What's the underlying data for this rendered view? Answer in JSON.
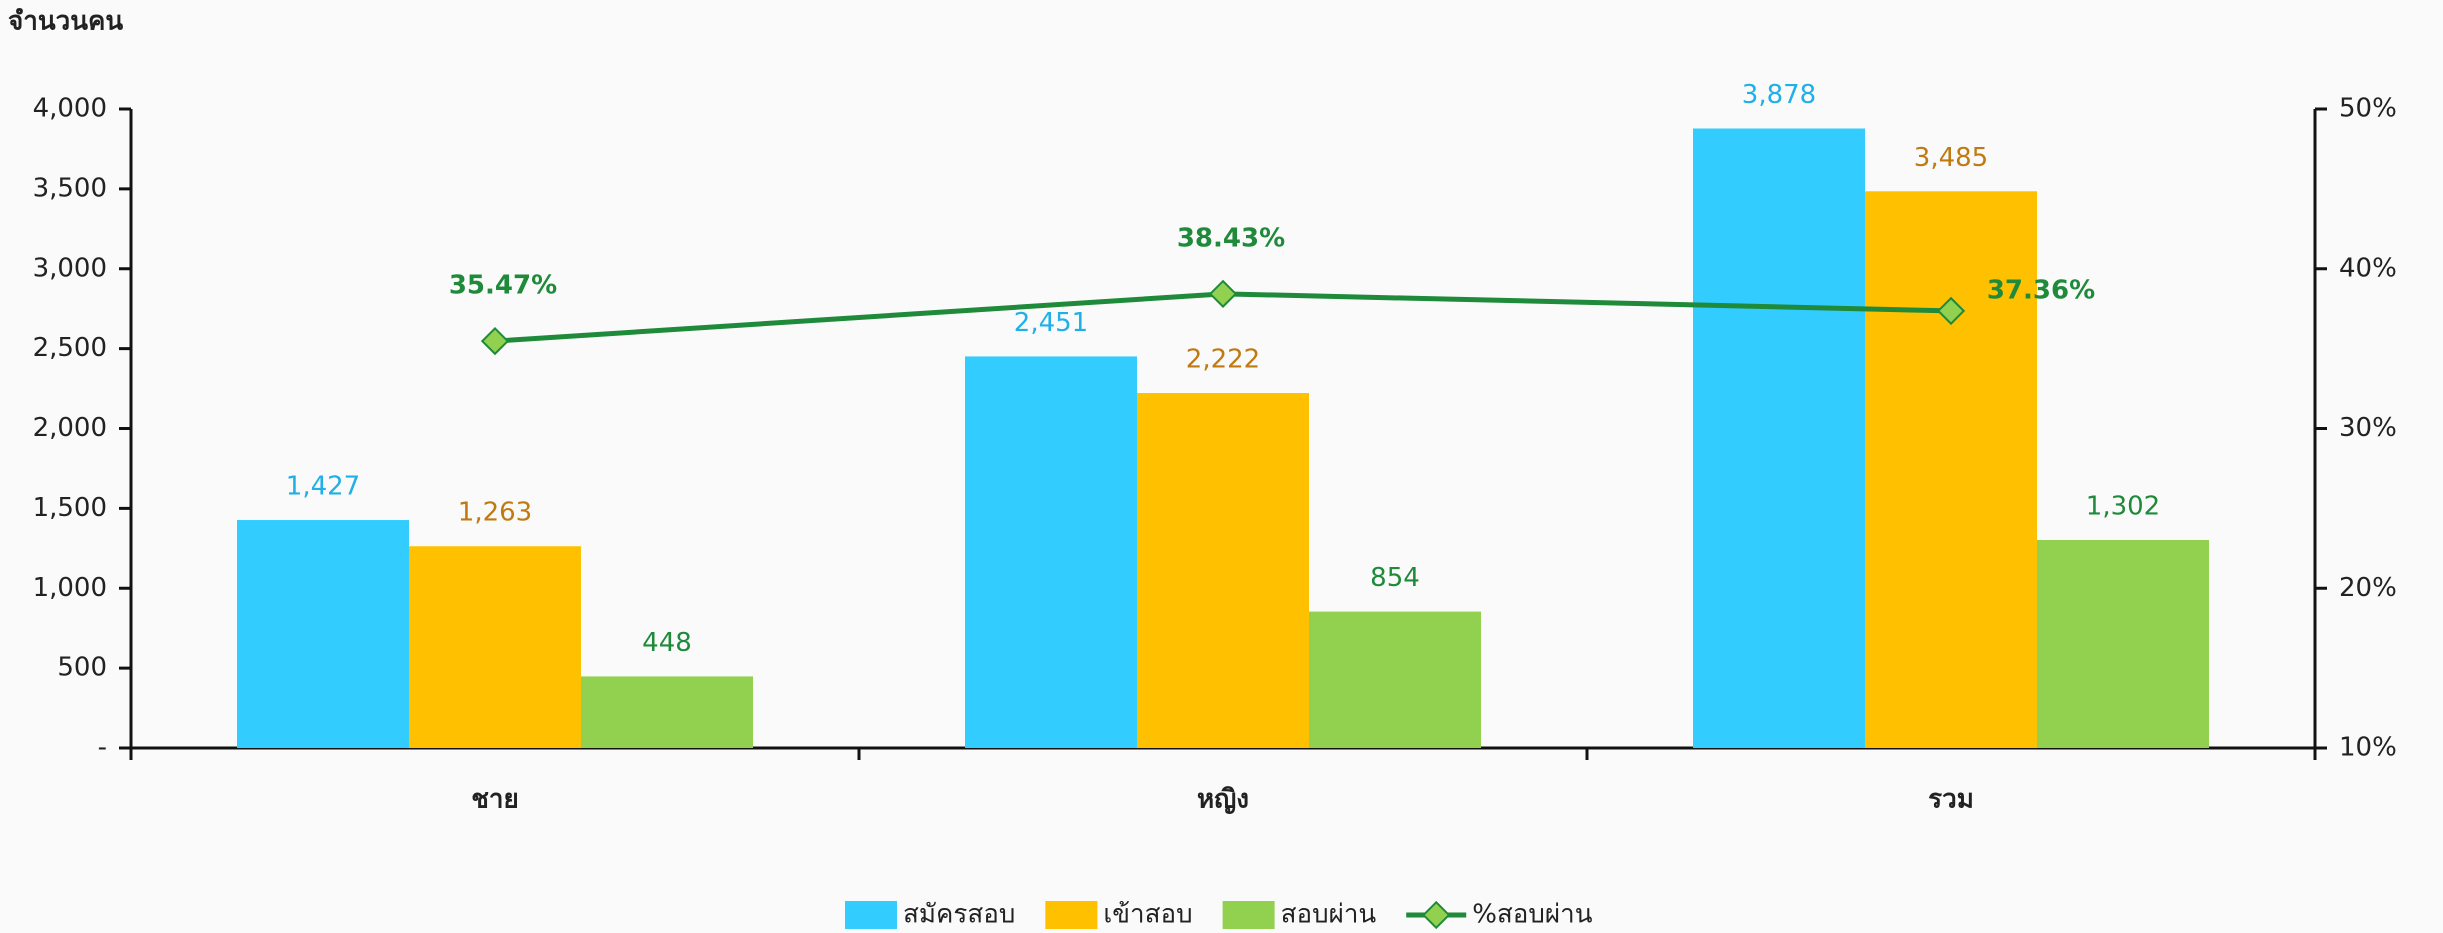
{
  "chart_data": {
    "type": "bar",
    "y_axis_title": "จำนวนคน",
    "categories": [
      "ชาย",
      "หญิง",
      "รวม"
    ],
    "series": [
      {
        "name": "สมัครสอบ",
        "color": "#33ccff",
        "label_color": "#1fb0e8",
        "values": [
          1427,
          2451,
          3878
        ],
        "value_labels": [
          "1,427",
          "2,451",
          "3,878"
        ]
      },
      {
        "name": "เข้าสอบ",
        "color": "#ffc000",
        "label_color": "#c07a10",
        "values": [
          1263,
          2222,
          3485
        ],
        "value_labels": [
          "1,263",
          "2,222",
          "3,485"
        ]
      },
      {
        "name": "สอบผ่าน",
        "color": "#92d050",
        "label_color": "#1e8a3a",
        "values": [
          448,
          854,
          1302
        ],
        "value_labels": [
          "448",
          "854",
          "1,302"
        ]
      },
      {
        "name": "%สอบผ่าน",
        "type": "line",
        "axis": "y2",
        "color": "#1e8a3a",
        "marker_color": "#92d050",
        "label_color": "#1e8a3a",
        "values": [
          35.47,
          38.43,
          37.36
        ],
        "value_labels": [
          "35.47%",
          "38.43%",
          "37.36%"
        ]
      }
    ],
    "ylim": [
      0,
      4000
    ],
    "yticks": [
      {
        "value": 0,
        "label": "-"
      },
      500,
      {
        "value": 1000,
        "label": "1,000"
      },
      {
        "value": 1500,
        "label": "1,500"
      },
      {
        "value": 2000,
        "label": "2,000"
      },
      {
        "value": 2500,
        "label": "2,500"
      },
      {
        "value": 3000,
        "label": "3,000"
      },
      {
        "value": 3500,
        "label": "3,500"
      },
      {
        "value": 4000,
        "label": "4,000"
      }
    ],
    "y2lim": [
      10,
      50
    ],
    "y2ticks": [
      {
        "value": 10,
        "label": "10%"
      },
      {
        "value": 20,
        "label": "20%"
      },
      {
        "value": 30,
        "label": "30%"
      },
      {
        "value": 40,
        "label": "40%"
      },
      {
        "value": 50,
        "label": "50%"
      }
    ],
    "legend": "bottom"
  }
}
